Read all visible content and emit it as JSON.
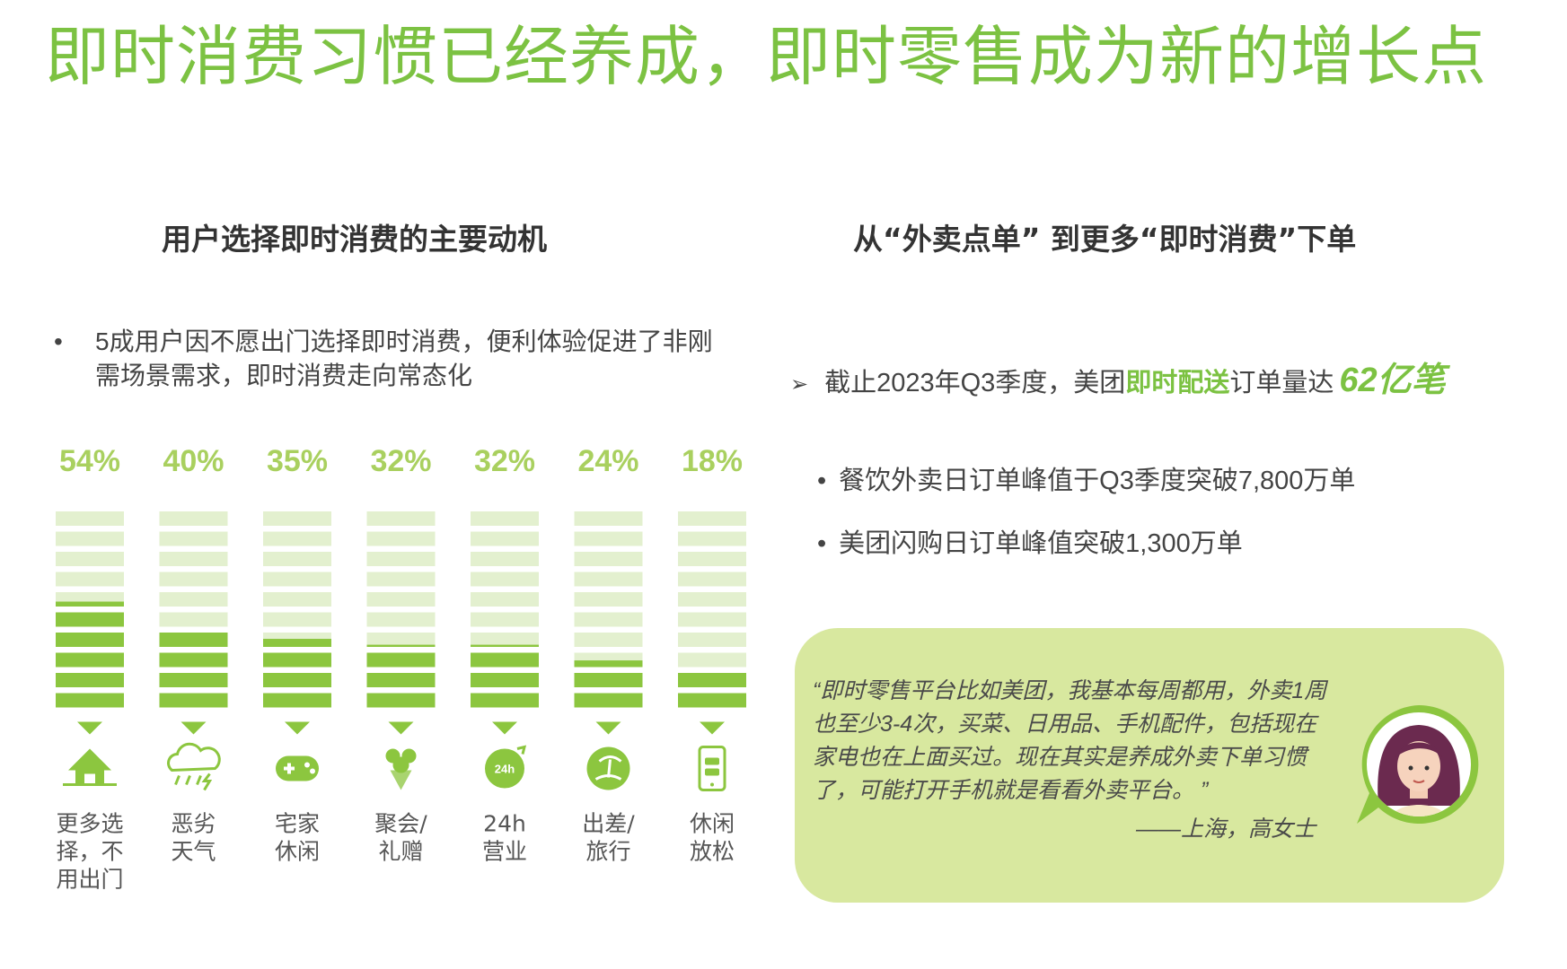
{
  "title": "即时消费习惯已经养成，即时零售成为新的增长点",
  "left_section": {
    "heading": "用户选择即时消费的主要动机",
    "bullet": "5成用户因不愿出门选择即时消费，便利体验促进了非刚需场景需求，即时消费走向常态化",
    "bullet_marker": "•"
  },
  "right_section": {
    "heading": "从“外卖点单” 到更多“即时消费”下单",
    "stat": {
      "arrow": "➢",
      "prefix": "截止2023年Q3季度，美团",
      "highlight": "即时配送",
      "suffix": "订单量达",
      "big_value": "62亿笔"
    },
    "sub_bullets": [
      "餐饮外卖日订单峰值于Q3季度突破7,800万单",
      "美团闪购日订单峰值突破1,300万单"
    ],
    "sub_bullet_marker": "•"
  },
  "quote": {
    "text": "“即时零售平台比如美团，我基本每周都用，外卖1周也至少3-4次，买菜、日用品、手机配件，包括现在家电也在上面买过。现在其实是养成外卖下单习惯了，可能打开手机就是看看外卖平台。 ”",
    "author": "——上海，高女士",
    "avatar_icon": "woman-avatar-icon"
  },
  "chart_data": {
    "type": "bar",
    "categories": [
      "更多选择，不用出门",
      "恶劣天气",
      "宅家休闲",
      "聚会/礼赠",
      "24h营业",
      "出差/旅行",
      "休闲放松"
    ],
    "values": [
      54,
      40,
      35,
      32,
      32,
      24,
      18
    ],
    "value_labels": [
      "54%",
      "40%",
      "35%",
      "32%",
      "32%",
      "24%",
      "18%"
    ],
    "icons": [
      "house-icon",
      "storm-cloud-icon",
      "gamepad-icon",
      "flower-bouquet-icon",
      "24h-clock-icon",
      "beach-icon",
      "phone-chat-icon"
    ],
    "label_lines": [
      [
        "更多选",
        "择，不",
        "用出门"
      ],
      [
        "恶劣",
        "天气"
      ],
      [
        "宅家",
        "休闲"
      ],
      [
        "聚会/",
        "礼赠"
      ],
      [
        "24h",
        "营业"
      ],
      [
        "出差/",
        "旅行"
      ],
      [
        "休闲",
        "放松"
      ]
    ],
    "ylim": [
      0,
      100
    ],
    "colors": {
      "filled": "#8cc63f",
      "empty": "#e3f0cf",
      "label": "#a9d05f",
      "marker": "#8cc63f"
    }
  }
}
